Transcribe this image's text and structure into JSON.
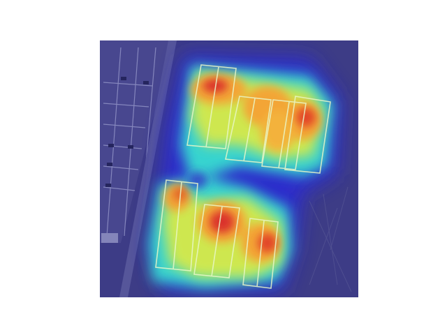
{
  "figure": {
    "background_color": "#ffffff",
    "image": {
      "kind": "aerial photograph with attention heatmap overlay",
      "subject": "tennis courts",
      "colormap": "jet",
      "colors": {
        "base_tint": "#3b3b85",
        "low": "#2a2ad8",
        "mid": "#37e6d0",
        "high": "#f5d23a",
        "peak": "#d8262a",
        "court_lines": "#e9f7c8"
      }
    }
  }
}
